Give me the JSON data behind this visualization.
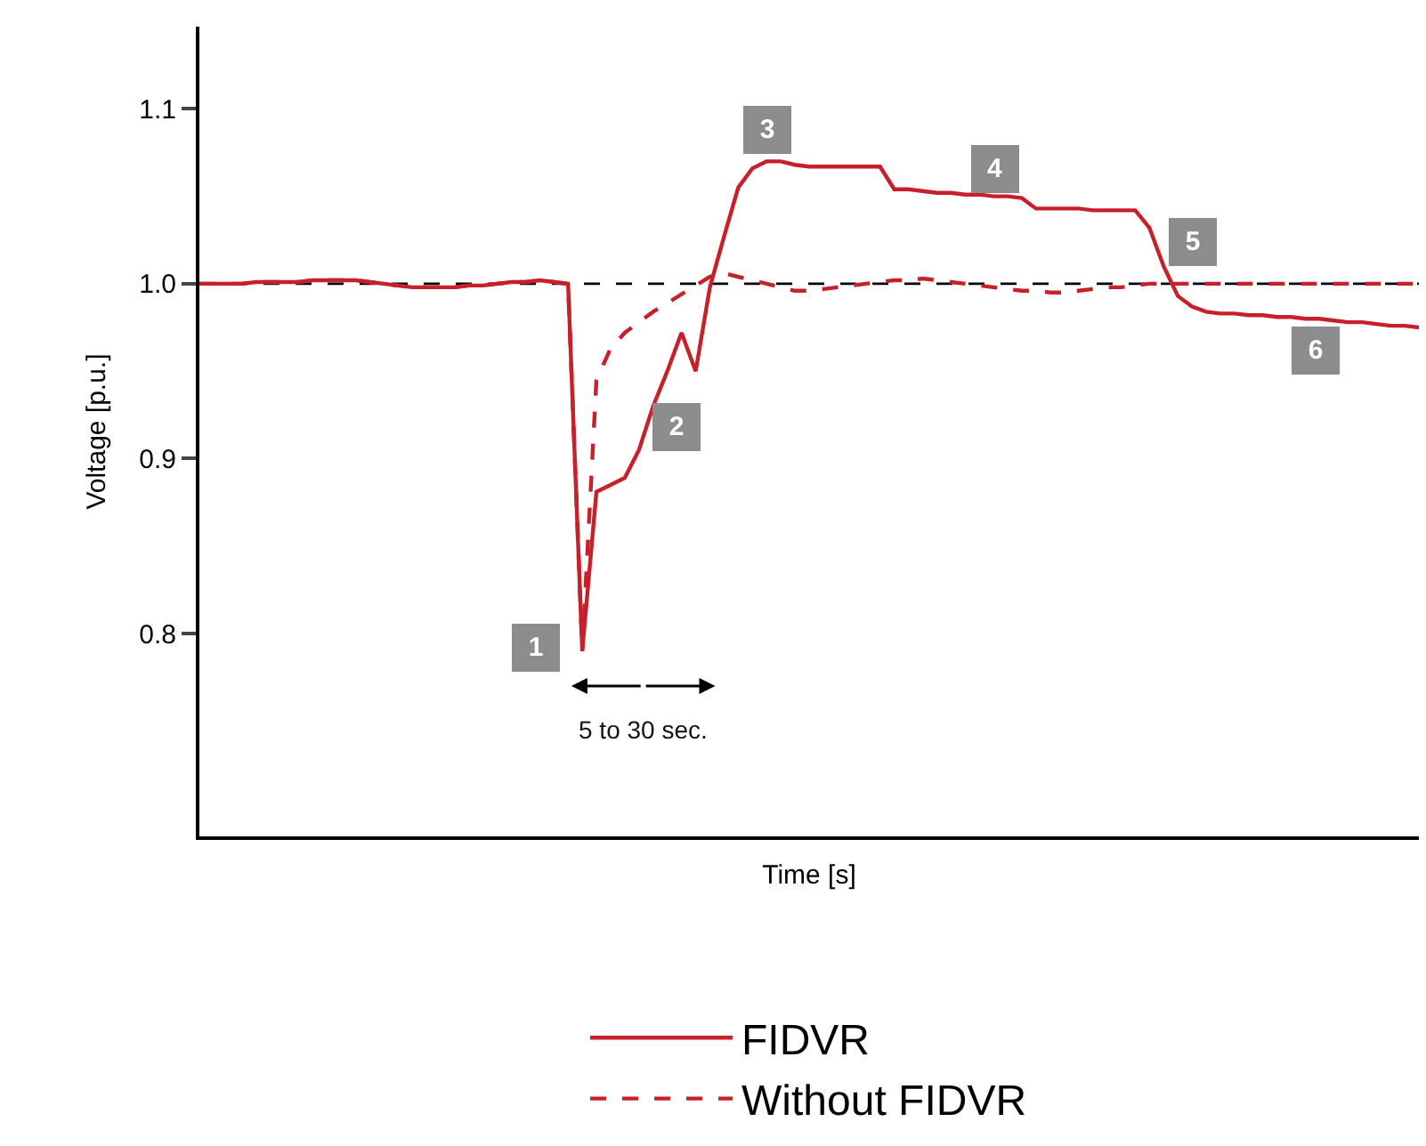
{
  "chart_data": {
    "type": "line",
    "xlabel": "Time [s]",
    "ylabel": "Voltage [p.u.]",
    "categories": [
      null,
      null,
      null,
      null,
      null,
      null,
      null,
      null,
      null,
      null,
      null,
      null,
      null,
      null,
      null,
      null,
      null,
      null,
      null,
      null,
      null,
      null,
      null,
      null,
      null,
      null,
      null,
      null,
      null,
      null,
      null,
      null,
      null,
      null,
      null,
      null,
      null,
      null,
      null,
      null,
      null,
      null,
      null,
      null,
      null,
      null,
      null,
      null,
      null,
      null,
      null,
      null,
      null,
      null,
      null,
      null,
      null,
      null,
      null,
      null,
      null,
      null,
      null,
      null,
      null,
      null,
      null,
      null,
      null,
      null,
      null,
      null,
      null,
      null,
      null,
      null,
      null,
      null,
      null,
      null,
      null,
      null,
      null,
      null,
      null,
      null,
      null
    ],
    "series": [
      {
        "name": "FIDVR",
        "color": "#c8202a",
        "line_style": "solid",
        "values": [
          1.0,
          1.0,
          1.0,
          1.0,
          1.001,
          1.001,
          1.001,
          1.001,
          1.002,
          1.002,
          1.002,
          1.002,
          1.001,
          1.0,
          0.999,
          0.998,
          0.998,
          0.998,
          0.998,
          0.999,
          0.999,
          1.0,
          1.001,
          1.001,
          1.002,
          1.001,
          1.0,
          0.79,
          0.881,
          0.885,
          0.889,
          0.905,
          0.93,
          0.95,
          0.972,
          0.95,
          0.998,
          1.027,
          1.055,
          1.066,
          1.07,
          1.07,
          1.068,
          1.067,
          1.067,
          1.067,
          1.067,
          1.067,
          1.067,
          1.054,
          1.054,
          1.053,
          1.052,
          1.052,
          1.051,
          1.051,
          1.05,
          1.05,
          1.049,
          1.043,
          1.043,
          1.043,
          1.043,
          1.042,
          1.042,
          1.042,
          1.042,
          1.032,
          1.01,
          0.993,
          0.987,
          0.984,
          0.983,
          0.983,
          0.982,
          0.982,
          0.981,
          0.981,
          0.98,
          0.98,
          0.979,
          0.978,
          0.978,
          0.977,
          0.976,
          0.976,
          0.975
        ]
      },
      {
        "name": "Without FIDVR",
        "color": "#c8202a",
        "line_style": "dashed",
        "values": [
          1.0,
          1.0,
          1.0,
          1.0,
          1.001,
          1.001,
          1.001,
          1.001,
          1.002,
          1.002,
          1.002,
          1.002,
          1.001,
          1.0,
          0.999,
          0.998,
          0.998,
          0.998,
          0.998,
          0.999,
          0.999,
          1.0,
          1.001,
          1.001,
          1.002,
          1.001,
          1.0,
          0.79,
          0.945,
          0.963,
          0.972,
          0.978,
          0.984,
          0.989,
          0.994,
          0.999,
          1.004,
          1.006,
          1.004,
          1.002,
          1.0,
          0.998,
          0.996,
          0.996,
          0.997,
          0.998,
          0.999,
          1.0,
          1.001,
          1.002,
          1.002,
          1.003,
          1.002,
          1.001,
          1.0,
          0.999,
          0.998,
          0.997,
          0.996,
          0.996,
          0.995,
          0.995,
          0.996,
          0.997,
          0.998,
          0.998,
          0.999,
          1.0,
          1.0,
          1.0,
          1.0,
          1.0,
          1.0,
          1.0,
          1.0,
          1.0,
          1.0,
          1.0,
          1.0,
          1.0,
          1.0,
          1.0,
          1.0,
          1.0,
          1.0,
          1.0,
          1.0
        ]
      }
    ],
    "ylim": [
      0.684,
      1.147
    ],
    "yticks": [
      0.8,
      0.9,
      {
        "value": 1,
        "label": "1.0"
      },
      1.1
    ],
    "ref_lines": [
      {
        "axis": "y",
        "value": 1.0,
        "color": "#000000",
        "line_style": "dashed"
      }
    ],
    "annotations": [
      "1",
      "2",
      "3",
      "4",
      "5",
      "6",
      "5 to 30 sec."
    ],
    "tick_labels": "y",
    "legend": "bottom"
  }
}
